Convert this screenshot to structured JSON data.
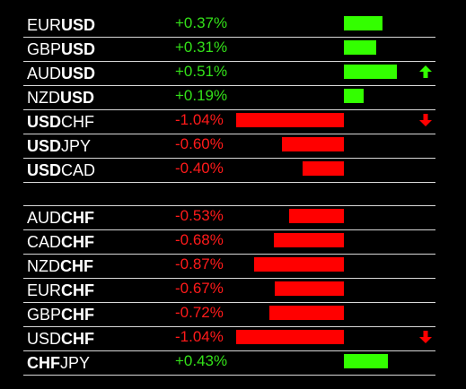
{
  "colors": {
    "positive": "#33ff00",
    "negative": "#ff0000",
    "positive_text": "#33e019",
    "negative_text": "#ff1a1a",
    "background": "#000000",
    "text": "#ffffff"
  },
  "rows": [
    {
      "base": "EUR",
      "quote": "USD",
      "bold_part": "quote",
      "change": "+0.37%",
      "value": 0.37,
      "arrow": null
    },
    {
      "base": "GBP",
      "quote": "USD",
      "bold_part": "quote",
      "change": "+0.31%",
      "value": 0.31,
      "arrow": null
    },
    {
      "base": "AUD",
      "quote": "USD",
      "bold_part": "quote",
      "change": "+0.51%",
      "value": 0.51,
      "arrow": "up-arrow-icon"
    },
    {
      "base": "NZD",
      "quote": "USD",
      "bold_part": "quote",
      "change": "+0.19%",
      "value": 0.19,
      "arrow": null
    },
    {
      "base": "USD",
      "quote": "CHF",
      "bold_part": "base",
      "change": "-1.04%",
      "value": -1.04,
      "arrow": "down-arrow-icon"
    },
    {
      "base": "USD",
      "quote": "JPY",
      "bold_part": "base",
      "change": "-0.60%",
      "value": -0.6,
      "arrow": null
    },
    {
      "base": "USD",
      "quote": "CAD",
      "bold_part": "base",
      "change": "-0.40%",
      "value": -0.4,
      "arrow": null
    },
    {
      "spacer": true
    },
    {
      "base": "AUD",
      "quote": "CHF",
      "bold_part": "quote",
      "change": "-0.53%",
      "value": -0.53,
      "arrow": null
    },
    {
      "base": "CAD",
      "quote": "CHF",
      "bold_part": "quote",
      "change": "-0.68%",
      "value": -0.68,
      "arrow": null
    },
    {
      "base": "NZD",
      "quote": "CHF",
      "bold_part": "quote",
      "change": "-0.87%",
      "value": -0.87,
      "arrow": null
    },
    {
      "base": "EUR",
      "quote": "CHF",
      "bold_part": "quote",
      "change": "-0.67%",
      "value": -0.67,
      "arrow": null
    },
    {
      "base": "GBP",
      "quote": "CHF",
      "bold_part": "quote",
      "change": "-0.72%",
      "value": -0.72,
      "arrow": null
    },
    {
      "base": "USD",
      "quote": "CHF",
      "bold_part": "quote",
      "change": "-1.04%",
      "value": -1.04,
      "arrow": "down-arrow-icon"
    },
    {
      "base": "CHF",
      "quote": "JPY",
      "bold_part": "base",
      "change": "+0.43%",
      "value": 0.43,
      "arrow": null
    }
  ]
}
